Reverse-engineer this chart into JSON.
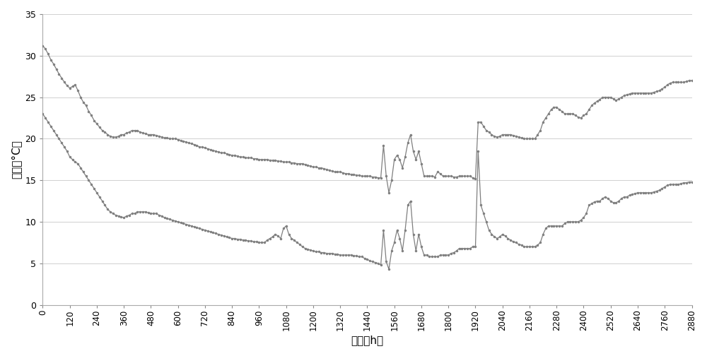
{
  "title": "",
  "xlabel": "时间（h）",
  "ylabel": "温度（°C）",
  "xlim": [
    0,
    2880
  ],
  "ylim": [
    0,
    35
  ],
  "yticks": [
    0,
    5,
    10,
    15,
    20,
    25,
    30,
    35
  ],
  "xticks": [
    0,
    120,
    240,
    360,
    480,
    600,
    720,
    840,
    960,
    1080,
    1200,
    1320,
    1440,
    1560,
    1680,
    1800,
    1920,
    2040,
    2160,
    2280,
    2400,
    2520,
    2640,
    2760,
    2880
  ],
  "line_color": "#7f7f7f",
  "marker_color": "#7f7f7f",
  "background_color": "#ffffff",
  "series_top": [
    [
      0,
      31.2
    ],
    [
      12,
      30.8
    ],
    [
      24,
      30.2
    ],
    [
      36,
      29.5
    ],
    [
      48,
      29.0
    ],
    [
      60,
      28.4
    ],
    [
      72,
      27.8
    ],
    [
      84,
      27.3
    ],
    [
      96,
      26.8
    ],
    [
      108,
      26.4
    ],
    [
      120,
      26.1
    ],
    [
      132,
      26.3
    ],
    [
      144,
      26.5
    ],
    [
      156,
      25.8
    ],
    [
      168,
      25.0
    ],
    [
      180,
      24.4
    ],
    [
      192,
      24.0
    ],
    [
      204,
      23.3
    ],
    [
      216,
      22.8
    ],
    [
      228,
      22.2
    ],
    [
      240,
      21.8
    ],
    [
      252,
      21.4
    ],
    [
      264,
      21.0
    ],
    [
      276,
      20.8
    ],
    [
      288,
      20.5
    ],
    [
      300,
      20.3
    ],
    [
      312,
      20.2
    ],
    [
      324,
      20.2
    ],
    [
      336,
      20.3
    ],
    [
      348,
      20.5
    ],
    [
      360,
      20.5
    ],
    [
      372,
      20.7
    ],
    [
      384,
      20.8
    ],
    [
      396,
      21.0
    ],
    [
      408,
      21.0
    ],
    [
      420,
      21.0
    ],
    [
      432,
      20.8
    ],
    [
      444,
      20.7
    ],
    [
      456,
      20.6
    ],
    [
      468,
      20.5
    ],
    [
      480,
      20.5
    ],
    [
      492,
      20.5
    ],
    [
      504,
      20.4
    ],
    [
      516,
      20.3
    ],
    [
      528,
      20.2
    ],
    [
      540,
      20.1
    ],
    [
      552,
      20.1
    ],
    [
      564,
      20.0
    ],
    [
      576,
      20.0
    ],
    [
      588,
      20.0
    ],
    [
      600,
      19.9
    ],
    [
      612,
      19.8
    ],
    [
      624,
      19.7
    ],
    [
      636,
      19.6
    ],
    [
      648,
      19.5
    ],
    [
      660,
      19.4
    ],
    [
      672,
      19.3
    ],
    [
      684,
      19.2
    ],
    [
      696,
      19.0
    ],
    [
      708,
      19.0
    ],
    [
      720,
      18.9
    ],
    [
      732,
      18.8
    ],
    [
      744,
      18.7
    ],
    [
      756,
      18.6
    ],
    [
      768,
      18.5
    ],
    [
      780,
      18.4
    ],
    [
      792,
      18.3
    ],
    [
      804,
      18.3
    ],
    [
      816,
      18.2
    ],
    [
      828,
      18.1
    ],
    [
      840,
      18.0
    ],
    [
      852,
      18.0
    ],
    [
      864,
      17.9
    ],
    [
      876,
      17.8
    ],
    [
      888,
      17.8
    ],
    [
      900,
      17.7
    ],
    [
      912,
      17.7
    ],
    [
      924,
      17.7
    ],
    [
      936,
      17.6
    ],
    [
      948,
      17.6
    ],
    [
      960,
      17.5
    ],
    [
      972,
      17.5
    ],
    [
      984,
      17.5
    ],
    [
      996,
      17.5
    ],
    [
      1008,
      17.4
    ],
    [
      1020,
      17.4
    ],
    [
      1032,
      17.4
    ],
    [
      1044,
      17.3
    ],
    [
      1056,
      17.3
    ],
    [
      1068,
      17.2
    ],
    [
      1080,
      17.2
    ],
    [
      1092,
      17.2
    ],
    [
      1104,
      17.1
    ],
    [
      1116,
      17.1
    ],
    [
      1128,
      17.0
    ],
    [
      1140,
      17.0
    ],
    [
      1152,
      17.0
    ],
    [
      1164,
      16.9
    ],
    [
      1176,
      16.8
    ],
    [
      1188,
      16.7
    ],
    [
      1200,
      16.6
    ],
    [
      1212,
      16.6
    ],
    [
      1224,
      16.5
    ],
    [
      1236,
      16.5
    ],
    [
      1248,
      16.4
    ],
    [
      1260,
      16.3
    ],
    [
      1272,
      16.2
    ],
    [
      1284,
      16.1
    ],
    [
      1296,
      16.0
    ],
    [
      1308,
      16.0
    ],
    [
      1320,
      16.0
    ],
    [
      1332,
      15.9
    ],
    [
      1344,
      15.8
    ],
    [
      1356,
      15.8
    ],
    [
      1368,
      15.7
    ],
    [
      1380,
      15.7
    ],
    [
      1392,
      15.6
    ],
    [
      1404,
      15.6
    ],
    [
      1416,
      15.5
    ],
    [
      1428,
      15.5
    ],
    [
      1440,
      15.5
    ],
    [
      1452,
      15.5
    ],
    [
      1464,
      15.4
    ],
    [
      1476,
      15.4
    ],
    [
      1488,
      15.3
    ],
    [
      1500,
      15.3
    ],
    [
      1512,
      19.2
    ],
    [
      1524,
      15.5
    ],
    [
      1536,
      13.5
    ],
    [
      1548,
      15.0
    ],
    [
      1560,
      17.5
    ],
    [
      1572,
      18.0
    ],
    [
      1584,
      17.5
    ],
    [
      1596,
      16.5
    ],
    [
      1608,
      17.8
    ],
    [
      1620,
      19.5
    ],
    [
      1632,
      20.5
    ],
    [
      1644,
      18.5
    ],
    [
      1656,
      17.5
    ],
    [
      1668,
      18.5
    ],
    [
      1680,
      17.0
    ],
    [
      1692,
      15.5
    ],
    [
      1704,
      15.5
    ],
    [
      1716,
      15.5
    ],
    [
      1728,
      15.5
    ],
    [
      1740,
      15.4
    ],
    [
      1752,
      16.0
    ],
    [
      1764,
      15.8
    ],
    [
      1776,
      15.5
    ],
    [
      1788,
      15.5
    ],
    [
      1800,
      15.5
    ],
    [
      1812,
      15.5
    ],
    [
      1824,
      15.4
    ],
    [
      1836,
      15.4
    ],
    [
      1848,
      15.5
    ],
    [
      1860,
      15.5
    ],
    [
      1872,
      15.5
    ],
    [
      1884,
      15.5
    ],
    [
      1896,
      15.5
    ],
    [
      1908,
      15.3
    ],
    [
      1920,
      15.2
    ],
    [
      1932,
      22.0
    ],
    [
      1944,
      22.0
    ],
    [
      1956,
      21.5
    ],
    [
      1968,
      21.0
    ],
    [
      1980,
      20.8
    ],
    [
      1992,
      20.5
    ],
    [
      2004,
      20.3
    ],
    [
      2016,
      20.2
    ],
    [
      2028,
      20.3
    ],
    [
      2040,
      20.5
    ],
    [
      2052,
      20.5
    ],
    [
      2064,
      20.5
    ],
    [
      2076,
      20.5
    ],
    [
      2088,
      20.4
    ],
    [
      2100,
      20.3
    ],
    [
      2112,
      20.2
    ],
    [
      2124,
      20.1
    ],
    [
      2136,
      20.0
    ],
    [
      2148,
      20.0
    ],
    [
      2160,
      20.0
    ],
    [
      2172,
      20.0
    ],
    [
      2184,
      20.0
    ],
    [
      2196,
      20.5
    ],
    [
      2208,
      21.0
    ],
    [
      2220,
      22.0
    ],
    [
      2232,
      22.5
    ],
    [
      2244,
      23.0
    ],
    [
      2256,
      23.5
    ],
    [
      2268,
      23.8
    ],
    [
      2280,
      23.8
    ],
    [
      2292,
      23.5
    ],
    [
      2304,
      23.3
    ],
    [
      2316,
      23.0
    ],
    [
      2328,
      23.0
    ],
    [
      2340,
      23.0
    ],
    [
      2352,
      23.0
    ],
    [
      2364,
      22.8
    ],
    [
      2376,
      22.6
    ],
    [
      2388,
      22.5
    ],
    [
      2400,
      22.8
    ],
    [
      2412,
      23.0
    ],
    [
      2424,
      23.5
    ],
    [
      2436,
      24.0
    ],
    [
      2448,
      24.3
    ],
    [
      2460,
      24.5
    ],
    [
      2472,
      24.7
    ],
    [
      2484,
      25.0
    ],
    [
      2496,
      25.0
    ],
    [
      2508,
      25.0
    ],
    [
      2520,
      25.0
    ],
    [
      2532,
      24.8
    ],
    [
      2544,
      24.6
    ],
    [
      2556,
      24.8
    ],
    [
      2568,
      25.0
    ],
    [
      2580,
      25.2
    ],
    [
      2592,
      25.3
    ],
    [
      2604,
      25.4
    ],
    [
      2616,
      25.5
    ],
    [
      2628,
      25.5
    ],
    [
      2640,
      25.5
    ],
    [
      2652,
      25.5
    ],
    [
      2664,
      25.5
    ],
    [
      2676,
      25.5
    ],
    [
      2688,
      25.5
    ],
    [
      2700,
      25.5
    ],
    [
      2712,
      25.6
    ],
    [
      2724,
      25.7
    ],
    [
      2736,
      25.8
    ],
    [
      2748,
      26.0
    ],
    [
      2760,
      26.2
    ],
    [
      2772,
      26.5
    ],
    [
      2784,
      26.7
    ],
    [
      2796,
      26.8
    ],
    [
      2808,
      26.8
    ],
    [
      2820,
      26.8
    ],
    [
      2832,
      26.8
    ],
    [
      2844,
      26.8
    ],
    [
      2856,
      26.9
    ],
    [
      2868,
      27.0
    ],
    [
      2880,
      27.0
    ]
  ],
  "series_bottom": [
    [
      0,
      23.0
    ],
    [
      12,
      22.5
    ],
    [
      24,
      22.0
    ],
    [
      36,
      21.5
    ],
    [
      48,
      21.0
    ],
    [
      60,
      20.5
    ],
    [
      72,
      20.0
    ],
    [
      84,
      19.5
    ],
    [
      96,
      19.0
    ],
    [
      108,
      18.5
    ],
    [
      120,
      17.8
    ],
    [
      132,
      17.5
    ],
    [
      144,
      17.2
    ],
    [
      156,
      17.0
    ],
    [
      168,
      16.5
    ],
    [
      180,
      16.0
    ],
    [
      192,
      15.5
    ],
    [
      204,
      15.0
    ],
    [
      216,
      14.5
    ],
    [
      228,
      14.0
    ],
    [
      240,
      13.5
    ],
    [
      252,
      13.0
    ],
    [
      264,
      12.5
    ],
    [
      276,
      12.0
    ],
    [
      288,
      11.5
    ],
    [
      300,
      11.2
    ],
    [
      312,
      11.0
    ],
    [
      324,
      10.8
    ],
    [
      336,
      10.7
    ],
    [
      348,
      10.6
    ],
    [
      360,
      10.5
    ],
    [
      372,
      10.7
    ],
    [
      384,
      10.8
    ],
    [
      396,
      11.0
    ],
    [
      408,
      11.0
    ],
    [
      420,
      11.2
    ],
    [
      432,
      11.2
    ],
    [
      444,
      11.2
    ],
    [
      456,
      11.2
    ],
    [
      468,
      11.1
    ],
    [
      480,
      11.0
    ],
    [
      492,
      11.0
    ],
    [
      504,
      11.0
    ],
    [
      516,
      10.8
    ],
    [
      528,
      10.7
    ],
    [
      540,
      10.5
    ],
    [
      552,
      10.4
    ],
    [
      564,
      10.3
    ],
    [
      576,
      10.2
    ],
    [
      588,
      10.1
    ],
    [
      600,
      10.0
    ],
    [
      612,
      9.9
    ],
    [
      624,
      9.8
    ],
    [
      636,
      9.7
    ],
    [
      648,
      9.6
    ],
    [
      660,
      9.5
    ],
    [
      672,
      9.4
    ],
    [
      684,
      9.3
    ],
    [
      696,
      9.2
    ],
    [
      708,
      9.1
    ],
    [
      720,
      9.0
    ],
    [
      732,
      8.9
    ],
    [
      744,
      8.8
    ],
    [
      756,
      8.7
    ],
    [
      768,
      8.6
    ],
    [
      780,
      8.5
    ],
    [
      792,
      8.4
    ],
    [
      804,
      8.3
    ],
    [
      816,
      8.2
    ],
    [
      828,
      8.1
    ],
    [
      840,
      8.0
    ],
    [
      852,
      8.0
    ],
    [
      864,
      7.9
    ],
    [
      876,
      7.9
    ],
    [
      888,
      7.8
    ],
    [
      900,
      7.8
    ],
    [
      912,
      7.7
    ],
    [
      924,
      7.7
    ],
    [
      936,
      7.6
    ],
    [
      948,
      7.6
    ],
    [
      960,
      7.5
    ],
    [
      972,
      7.5
    ],
    [
      984,
      7.5
    ],
    [
      996,
      7.8
    ],
    [
      1008,
      8.0
    ],
    [
      1020,
      8.2
    ],
    [
      1032,
      8.5
    ],
    [
      1044,
      8.3
    ],
    [
      1056,
      8.0
    ],
    [
      1068,
      9.2
    ],
    [
      1080,
      9.5
    ],
    [
      1092,
      8.5
    ],
    [
      1104,
      8.0
    ],
    [
      1116,
      7.8
    ],
    [
      1128,
      7.5
    ],
    [
      1140,
      7.3
    ],
    [
      1152,
      7.0
    ],
    [
      1164,
      6.8
    ],
    [
      1176,
      6.7
    ],
    [
      1188,
      6.6
    ],
    [
      1200,
      6.5
    ],
    [
      1212,
      6.4
    ],
    [
      1224,
      6.4
    ],
    [
      1236,
      6.3
    ],
    [
      1248,
      6.3
    ],
    [
      1260,
      6.2
    ],
    [
      1272,
      6.2
    ],
    [
      1284,
      6.2
    ],
    [
      1296,
      6.1
    ],
    [
      1308,
      6.1
    ],
    [
      1320,
      6.0
    ],
    [
      1332,
      6.0
    ],
    [
      1344,
      6.0
    ],
    [
      1356,
      6.0
    ],
    [
      1368,
      6.0
    ],
    [
      1380,
      5.9
    ],
    [
      1392,
      5.9
    ],
    [
      1404,
      5.8
    ],
    [
      1416,
      5.8
    ],
    [
      1428,
      5.6
    ],
    [
      1440,
      5.5
    ],
    [
      1452,
      5.3
    ],
    [
      1464,
      5.2
    ],
    [
      1476,
      5.1
    ],
    [
      1488,
      5.0
    ],
    [
      1500,
      4.8
    ],
    [
      1512,
      9.0
    ],
    [
      1524,
      5.2
    ],
    [
      1536,
      4.3
    ],
    [
      1548,
      6.5
    ],
    [
      1560,
      7.5
    ],
    [
      1572,
      9.0
    ],
    [
      1584,
      8.0
    ],
    [
      1596,
      6.5
    ],
    [
      1608,
      9.0
    ],
    [
      1620,
      12.0
    ],
    [
      1632,
      12.5
    ],
    [
      1644,
      8.5
    ],
    [
      1656,
      6.5
    ],
    [
      1668,
      8.5
    ],
    [
      1680,
      7.0
    ],
    [
      1692,
      6.0
    ],
    [
      1704,
      6.0
    ],
    [
      1716,
      5.8
    ],
    [
      1728,
      5.8
    ],
    [
      1740,
      5.8
    ],
    [
      1752,
      5.8
    ],
    [
      1764,
      6.0
    ],
    [
      1776,
      6.0
    ],
    [
      1788,
      6.0
    ],
    [
      1800,
      6.0
    ],
    [
      1812,
      6.2
    ],
    [
      1824,
      6.3
    ],
    [
      1836,
      6.5
    ],
    [
      1848,
      6.8
    ],
    [
      1860,
      6.8
    ],
    [
      1872,
      6.8
    ],
    [
      1884,
      6.8
    ],
    [
      1896,
      6.8
    ],
    [
      1908,
      7.0
    ],
    [
      1920,
      7.0
    ],
    [
      1932,
      18.5
    ],
    [
      1944,
      12.0
    ],
    [
      1956,
      11.0
    ],
    [
      1968,
      10.0
    ],
    [
      1980,
      9.0
    ],
    [
      1992,
      8.5
    ],
    [
      2004,
      8.2
    ],
    [
      2016,
      8.0
    ],
    [
      2028,
      8.2
    ],
    [
      2040,
      8.5
    ],
    [
      2052,
      8.3
    ],
    [
      2064,
      8.0
    ],
    [
      2076,
      7.8
    ],
    [
      2088,
      7.6
    ],
    [
      2100,
      7.5
    ],
    [
      2112,
      7.3
    ],
    [
      2124,
      7.2
    ],
    [
      2136,
      7.0
    ],
    [
      2148,
      7.0
    ],
    [
      2160,
      7.0
    ],
    [
      2172,
      7.0
    ],
    [
      2184,
      7.0
    ],
    [
      2196,
      7.2
    ],
    [
      2208,
      7.5
    ],
    [
      2220,
      8.5
    ],
    [
      2232,
      9.2
    ],
    [
      2244,
      9.5
    ],
    [
      2256,
      9.5
    ],
    [
      2268,
      9.5
    ],
    [
      2280,
      9.5
    ],
    [
      2292,
      9.5
    ],
    [
      2304,
      9.5
    ],
    [
      2316,
      9.8
    ],
    [
      2328,
      10.0
    ],
    [
      2340,
      10.0
    ],
    [
      2352,
      10.0
    ],
    [
      2364,
      10.0
    ],
    [
      2376,
      10.0
    ],
    [
      2388,
      10.2
    ],
    [
      2400,
      10.5
    ],
    [
      2412,
      11.0
    ],
    [
      2424,
      12.0
    ],
    [
      2436,
      12.2
    ],
    [
      2448,
      12.4
    ],
    [
      2460,
      12.5
    ],
    [
      2472,
      12.5
    ],
    [
      2484,
      12.8
    ],
    [
      2496,
      13.0
    ],
    [
      2508,
      12.8
    ],
    [
      2520,
      12.5
    ],
    [
      2532,
      12.3
    ],
    [
      2544,
      12.3
    ],
    [
      2556,
      12.5
    ],
    [
      2568,
      12.8
    ],
    [
      2580,
      13.0
    ],
    [
      2592,
      13.0
    ],
    [
      2604,
      13.2
    ],
    [
      2616,
      13.3
    ],
    [
      2628,
      13.4
    ],
    [
      2640,
      13.5
    ],
    [
      2652,
      13.5
    ],
    [
      2664,
      13.5
    ],
    [
      2676,
      13.5
    ],
    [
      2688,
      13.5
    ],
    [
      2700,
      13.5
    ],
    [
      2712,
      13.6
    ],
    [
      2724,
      13.7
    ],
    [
      2736,
      13.8
    ],
    [
      2748,
      14.0
    ],
    [
      2760,
      14.2
    ],
    [
      2772,
      14.4
    ],
    [
      2784,
      14.5
    ],
    [
      2796,
      14.5
    ],
    [
      2808,
      14.5
    ],
    [
      2820,
      14.5
    ],
    [
      2832,
      14.6
    ],
    [
      2844,
      14.7
    ],
    [
      2856,
      14.7
    ],
    [
      2868,
      14.8
    ],
    [
      2880,
      14.8
    ]
  ]
}
